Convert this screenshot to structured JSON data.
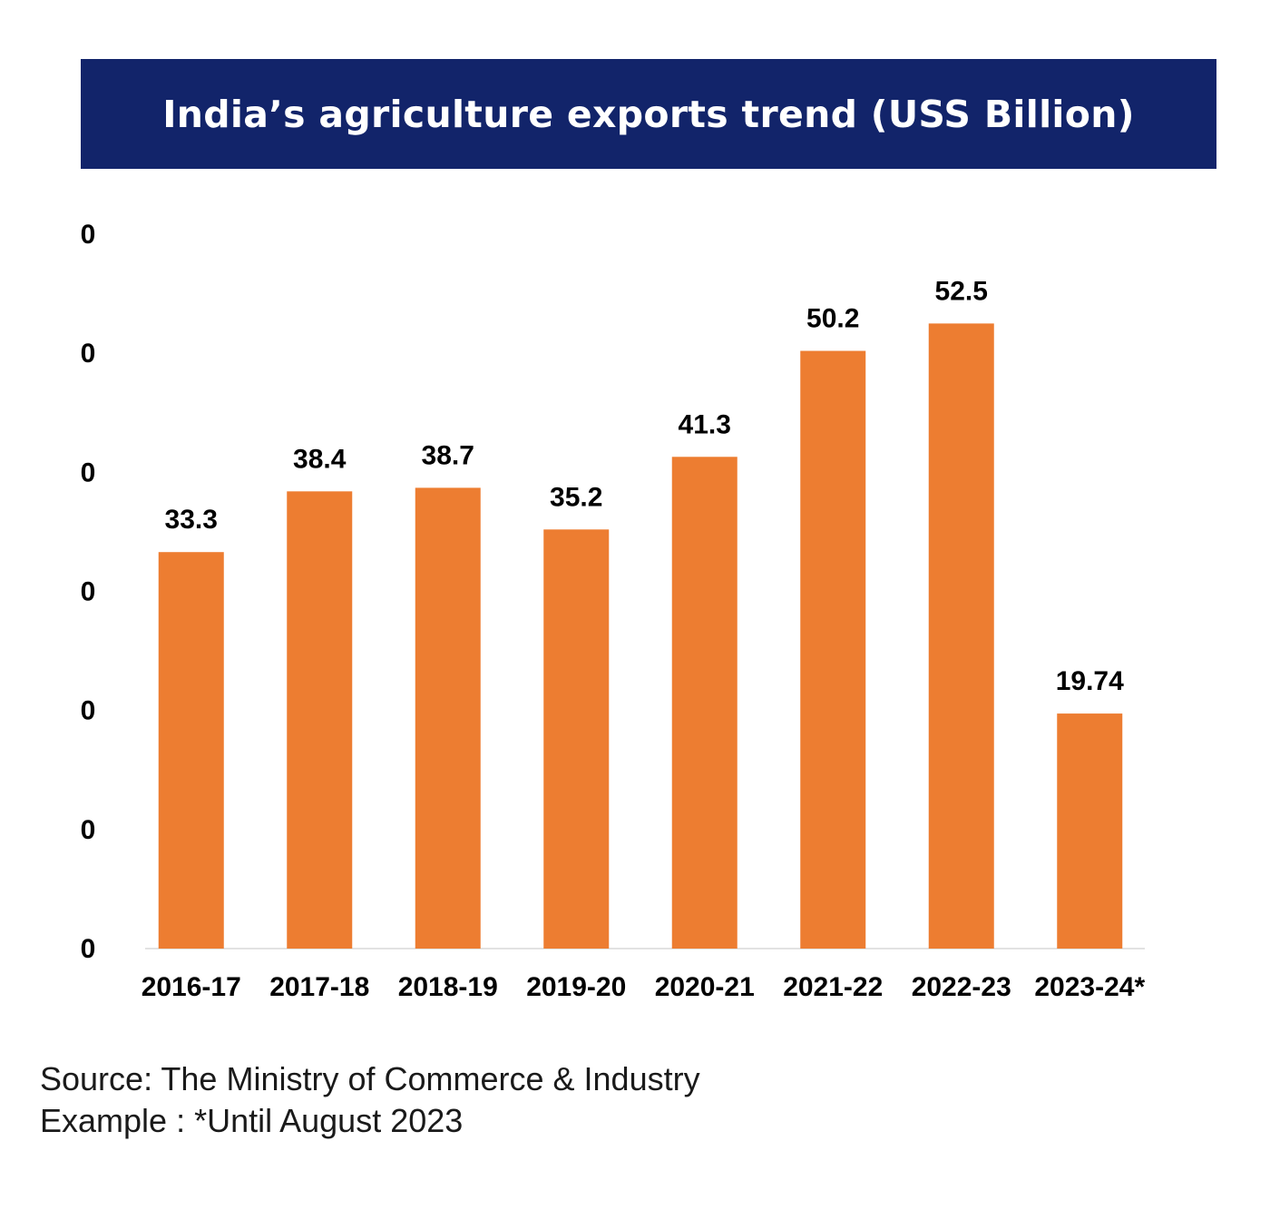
{
  "header": {
    "title": "India’s agriculture exports trend (USS Billion)"
  },
  "chart_data": {
    "type": "bar",
    "title": "India’s agriculture exports trend (USS Billion)",
    "xlabel": "",
    "ylabel": "",
    "categories": [
      "2016-17",
      "2017-18",
      "2018-19",
      "2019-20",
      "2020-21",
      "2021-22",
      "2022-23",
      "2023-24*"
    ],
    "values": [
      33.3,
      38.4,
      38.7,
      35.2,
      41.3,
      50.2,
      52.5,
      19.74
    ],
    "data_labels": [
      "33.3",
      "38.4",
      "38.7",
      "35.2",
      "41.3",
      "50.2",
      "52.5",
      "19.74"
    ],
    "y_tick_labels": [
      "0",
      "0",
      "0",
      "0",
      "0",
      "0",
      "0"
    ],
    "ylim": [
      0,
      60
    ],
    "grid": false,
    "legend": "none",
    "bar_color": "#ed7d31",
    "text_color": "#000000"
  },
  "footer": {
    "source": "Source: The Ministry of Commerce & Industry",
    "note": "Example : *Until August 2023"
  }
}
